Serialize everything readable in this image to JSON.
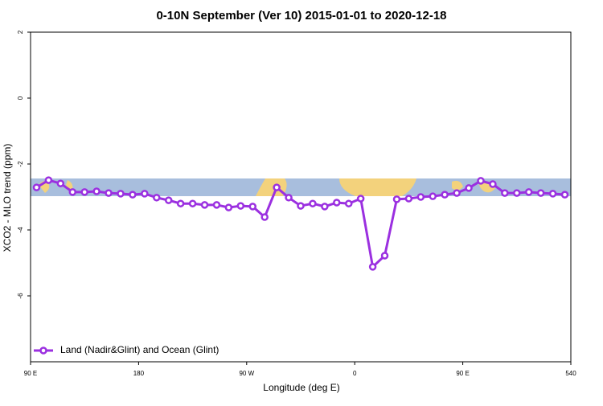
{
  "chart_data": {
    "type": "line",
    "title": "0-10N September (Ver 10)   2015-01-01 to 2020-12-18",
    "x_label": "Longitude (deg E)",
    "y_label": "XCO2 - MLO trend (ppm)",
    "x": [
      95,
      105,
      115,
      125,
      135,
      145,
      155,
      165,
      175,
      185,
      195,
      205,
      215,
      225,
      235,
      245,
      255,
      265,
      275,
      285,
      295,
      305,
      315,
      325,
      335,
      345,
      355,
      365,
      375,
      385,
      395,
      405,
      415,
      425,
      435,
      445,
      455,
      465,
      475,
      485,
      495,
      505,
      515,
      525,
      535
    ],
    "series": [
      {
        "name": "Land (Nadir&Glint) and Ocean (Glint)",
        "color": "#9b30e0",
        "values": [
          -2.71,
          -2.49,
          -2.59,
          -2.85,
          -2.85,
          -2.83,
          -2.88,
          -2.9,
          -2.93,
          -2.9,
          -3.02,
          -3.1,
          -3.2,
          -3.2,
          -3.24,
          -3.24,
          -3.32,
          -3.27,
          -3.29,
          -3.61,
          -2.71,
          -3.02,
          -3.27,
          -3.2,
          -3.29,
          -3.17,
          -3.2,
          -3.05,
          -5.12,
          -4.78,
          -3.07,
          -3.05,
          -3.0,
          -2.98,
          -2.93,
          -2.88,
          -2.73,
          -2.51,
          -2.61,
          -2.88,
          -2.88,
          -2.85,
          -2.88,
          -2.9,
          -2.93
        ]
      }
    ],
    "xlim": [
      90,
      540
    ],
    "xticks": [
      {
        "value": 90,
        "label": "90 E"
      },
      180,
      {
        "value": 270,
        "label": "90 W"
      },
      {
        "value": 360,
        "label": "0"
      },
      {
        "value": 450,
        "label": "90 E"
      },
      540
    ],
    "ylim": [
      -8,
      2
    ],
    "yticks": [
      -6,
      -4,
      -2,
      0,
      2
    ],
    "legend": "bottom-left"
  }
}
